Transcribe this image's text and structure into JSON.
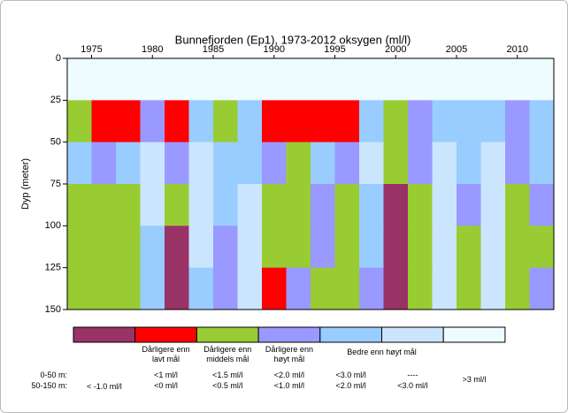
{
  "chart_data": {
    "type": "heatmap",
    "title": "Bunnefjorden (Ep1), 1973-2012 oksygen (ml/l)",
    "ylabel": "Dyp (meter)",
    "xlim": [
      1973,
      2013
    ],
    "xticks": [
      1975,
      1980,
      1985,
      1990,
      1995,
      2000,
      2005,
      2010
    ],
    "ylim": [
      150,
      0
    ],
    "yticks": [
      0,
      25,
      50,
      75,
      100,
      125,
      150
    ],
    "x_edges": [
      1973,
      1975,
      1977,
      1979,
      1981,
      1983,
      1985,
      1987,
      1989,
      1991,
      1993,
      1995,
      1997,
      1999,
      2001,
      2003,
      2005,
      2007,
      2009,
      2011,
      2013
    ],
    "y_edges": [
      0,
      25,
      50,
      75,
      100,
      125,
      150
    ],
    "z": [
      [
        3.5,
        3.5,
        3.5,
        3.5,
        3.2,
        3.5,
        3.5,
        3.5,
        3.2,
        3.2,
        3.5,
        3.2,
        3.5,
        3.2,
        3.5,
        3.8,
        3.5,
        3.8,
        3.5,
        3.8
      ],
      [
        1.0,
        0.8,
        0.9,
        1.8,
        0.8,
        2.5,
        1.2,
        2.2,
        0.8,
        0.9,
        0.9,
        0.8,
        2.5,
        1.2,
        1.8,
        2.8,
        2.2,
        2.8,
        1.8,
        2.5
      ],
      [
        1.2,
        0.8,
        1.2,
        2.5,
        0.6,
        2.5,
        1.5,
        1.8,
        0.8,
        0.4,
        1.2,
        0.6,
        2.2,
        0.3,
        0.8,
        2.5,
        1.2,
        2.5,
        0.6,
        1.8
      ],
      [
        0.3,
        0.2,
        0.3,
        2.2,
        0.4,
        2.2,
        1.2,
        2.5,
        0.4,
        0.2,
        0.8,
        0.3,
        1.5,
        -1.2,
        0.3,
        2.2,
        0.6,
        2.4,
        0.4,
        0.8
      ],
      [
        0.2,
        0.1,
        0.2,
        1.8,
        -1.2,
        2.0,
        0.8,
        2.5,
        0.1,
        0.4,
        0.5,
        0.1,
        1.2,
        -1.5,
        0.2,
        2.5,
        0.3,
        2.2,
        0.2,
        0.4
      ],
      [
        0.3,
        0.3,
        0.1,
        1.2,
        -1.5,
        1.5,
        0.6,
        2.2,
        -0.5,
        0.8,
        0.4,
        0.2,
        0.8,
        -1.5,
        0.3,
        2.5,
        0.1,
        2.0,
        0.1,
        0.6
      ]
    ],
    "zones": [
      {
        "label": "0-50 m:",
        "depth": [
          0,
          50
        ],
        "limits": [
          null,
          1,
          1.5,
          2.0,
          3.0,
          null
        ]
      },
      {
        "label": "50-150 m:",
        "depth": [
          50,
          150
        ],
        "limits": [
          -1.0,
          0,
          0.5,
          1.0,
          2.0,
          3.0
        ]
      }
    ],
    "legend": [
      {
        "color": "#993366",
        "label": "<  -1.0 ml/l"
      },
      {
        "color": "#ff0000",
        "header": "Dårligere enn lavt mål",
        "upper": "<1 ml/l",
        "lower": "<0 ml/l"
      },
      {
        "color": "#99cc33",
        "header": "Dårligere enn middels mål",
        "upper": "<1.5 ml/l",
        "lower": "<0.5 ml/l"
      },
      {
        "color": "#9999ff",
        "header": "Dårligere enn høyt mål",
        "upper": "<2.0 ml/l",
        "lower": "<1.0 ml/l"
      },
      {
        "color": "#99ccff",
        "upper": "<3.0 ml/l",
        "lower": "<2.0 ml/l"
      },
      {
        "color": "#cce5ff",
        "upper": "----",
        "lower": "<3.0 ml/l"
      },
      {
        "color": "#eefcff",
        "label": ">3 ml/l"
      }
    ],
    "legend_group_header": "Bedre enn høyt mål"
  }
}
